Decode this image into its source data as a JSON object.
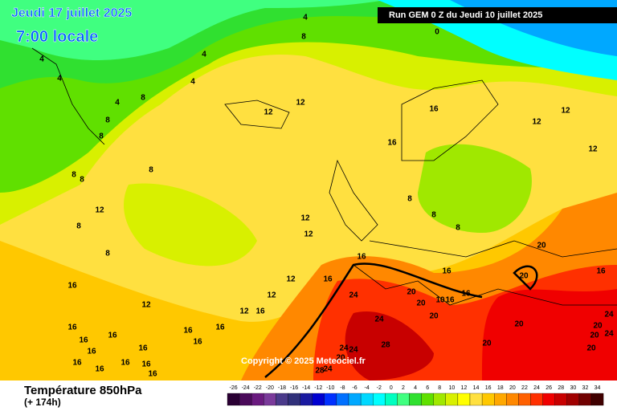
{
  "header": {
    "date": "Jeudi 17 juillet 2025",
    "time": "7:00 locale",
    "run": "Run GEM 0 Z du Jeudi 10 juillet 2025"
  },
  "copyright": "Copyright © 2025 Meteociel.fr",
  "footer": {
    "title": "Température 850hPa",
    "lead": "(+ 174h)"
  },
  "scale": {
    "labels": [
      -26,
      -24,
      -22,
      -20,
      -18,
      -16,
      -14,
      -12,
      -10,
      -8,
      -6,
      -4,
      -2,
      0,
      2,
      4,
      6,
      8,
      10,
      12,
      14,
      16,
      18,
      20,
      22,
      24,
      26,
      28,
      30,
      32,
      34
    ],
    "colors": [
      "#2a0033",
      "#4a0a5a",
      "#6a1a7f",
      "#7a3a9a",
      "#4a3a8a",
      "#30307a",
      "#1a1aa0",
      "#0000d0",
      "#0030ff",
      "#0070ff",
      "#00a8ff",
      "#00d8ff",
      "#00ffff",
      "#00ffc0",
      "#40ff80",
      "#30e030",
      "#60e000",
      "#a0e800",
      "#d8f000",
      "#ffff00",
      "#ffe040",
      "#ffc800",
      "#ffa800",
      "#ff8800",
      "#ff6000",
      "#ff3000",
      "#f00000",
      "#c80000",
      "#a00000",
      "#700000",
      "#400000"
    ]
  },
  "contour_labels": [
    4,
    8,
    0,
    4,
    4,
    4,
    4,
    8,
    4,
    12,
    12,
    16,
    12,
    8,
    12,
    8,
    16,
    12,
    8,
    8,
    8,
    12,
    8,
    12,
    12,
    8,
    8,
    8,
    8,
    16,
    20,
    16,
    12,
    16,
    20,
    16,
    16,
    20,
    24,
    12,
    20,
    10,
    16,
    16,
    12,
    12,
    16,
    24,
    20,
    20,
    24,
    20,
    24,
    20,
    16,
    16,
    16,
    16,
    16,
    16,
    16,
    16,
    24,
    24,
    28,
    20,
    20,
    16,
    16,
    16,
    16,
    20,
    16,
    28,
    24
  ]
}
